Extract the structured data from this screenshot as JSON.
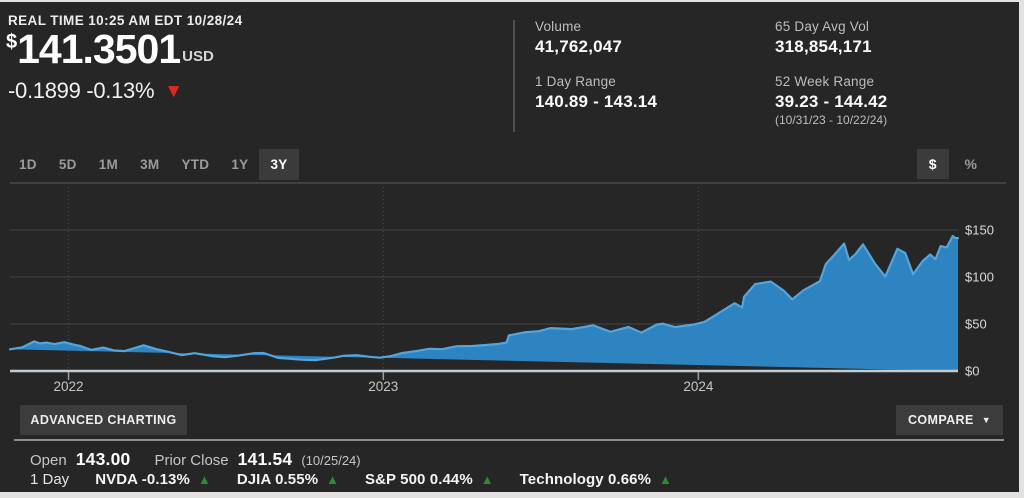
{
  "quote": {
    "realtime": "REAL TIME 10:25 AM EDT 10/28/24",
    "currency_symbol": "$",
    "price": "141.3501",
    "currency": "USD",
    "change": "-0.1899 -0.13%",
    "down_arrow": "▼"
  },
  "stats": {
    "volume_label": "Volume",
    "volume_value": "41,762,047",
    "day_range_label": "1 Day Range",
    "day_range_value": "140.89 - 143.14",
    "avg_vol_label": "65 Day Avg Vol",
    "avg_vol_value": "318,854,171",
    "week_range_label": "52 Week Range",
    "week_range_value": "39.23 - 144.42",
    "week_range_dates": "(10/31/23 - 10/22/24)"
  },
  "range_tabs": {
    "items": [
      {
        "label": "1D",
        "selected": false
      },
      {
        "label": "5D",
        "selected": false
      },
      {
        "label": "1M",
        "selected": false
      },
      {
        "label": "3M",
        "selected": false
      },
      {
        "label": "YTD",
        "selected": false
      },
      {
        "label": "1Y",
        "selected": false
      },
      {
        "label": "3Y",
        "selected": true
      }
    ],
    "unit_toggle": [
      {
        "label": "$",
        "selected": true
      },
      {
        "label": "%",
        "selected": false
      }
    ]
  },
  "chart_data": {
    "type": "area",
    "title": "NVDA 3 Year price chart",
    "x_unit": "months since 2021-10-25",
    "x_domain": [
      0,
      36.11
    ],
    "ylim": [
      0,
      200
    ],
    "grid": true,
    "y_ticks": [
      {
        "label": "$0",
        "value": 0
      },
      {
        "label": "$50",
        "value": 50
      },
      {
        "label": "$100",
        "value": 100
      },
      {
        "label": "$150",
        "value": 150
      }
    ],
    "x_ticks": [
      {
        "label": "2022",
        "t": 2.23
      },
      {
        "label": "2023",
        "t": 14.22
      },
      {
        "label": "2024",
        "t": 26.22
      }
    ],
    "fill_color": "#2e84c0",
    "line_color": "#55a4da",
    "series": [
      {
        "name": "NVDA",
        "points": [
          [
            0,
            23.1
          ],
          [
            0.45,
            25.0
          ],
          [
            0.92,
            31.5
          ],
          [
            1.15,
            29.3
          ],
          [
            1.38,
            30.2
          ],
          [
            1.7,
            28.6
          ],
          [
            2.07,
            30.6
          ],
          [
            2.4,
            28.3
          ],
          [
            2.66,
            26.8
          ],
          [
            3.09,
            22.4
          ],
          [
            3.55,
            24.9
          ],
          [
            3.97,
            21.8
          ],
          [
            4.37,
            21.2
          ],
          [
            4.75,
            24.5
          ],
          [
            5.09,
            27.3
          ],
          [
            5.55,
            23.5
          ],
          [
            6.04,
            20.3
          ],
          [
            6.54,
            16.9
          ],
          [
            7.03,
            18.9
          ],
          [
            7.69,
            15.9
          ],
          [
            8.18,
            14.8
          ],
          [
            8.64,
            16.2
          ],
          [
            9.3,
            18.9
          ],
          [
            9.66,
            19.2
          ],
          [
            10.22,
            13.9
          ],
          [
            10.61,
            13.2
          ],
          [
            11.1,
            12.0
          ],
          [
            11.63,
            11.6
          ],
          [
            12.32,
            14.2
          ],
          [
            12.68,
            16.1
          ],
          [
            13.21,
            16.8
          ],
          [
            13.7,
            15.1
          ],
          [
            14.09,
            14.2
          ],
          [
            14.49,
            15.7
          ],
          [
            14.95,
            19.2
          ],
          [
            15.44,
            21.1
          ],
          [
            15.97,
            23.6
          ],
          [
            16.46,
            23.2
          ],
          [
            17.02,
            26.4
          ],
          [
            17.61,
            26.6
          ],
          [
            18.07,
            27.6
          ],
          [
            18.63,
            28.9
          ],
          [
            18.92,
            30.4
          ],
          [
            19.0,
            37.9
          ],
          [
            19.58,
            41.1
          ],
          [
            20.14,
            42.3
          ],
          [
            20.6,
            45.6
          ],
          [
            21.39,
            44.6
          ],
          [
            21.95,
            47.2
          ],
          [
            22.21,
            48.6
          ],
          [
            22.87,
            41.7
          ],
          [
            23.56,
            46.8
          ],
          [
            24.05,
            40.8
          ],
          [
            24.64,
            49.5
          ],
          [
            24.87,
            50.3
          ],
          [
            25.33,
            46.7
          ],
          [
            26.05,
            49.5
          ],
          [
            26.45,
            52.2
          ],
          [
            26.97,
            61.2
          ],
          [
            27.6,
            72.1
          ],
          [
            27.89,
            67.5
          ],
          [
            27.96,
            78.8
          ],
          [
            28.38,
            92.5
          ],
          [
            28.98,
            95.1
          ],
          [
            29.47,
            85.5
          ],
          [
            29.8,
            76.2
          ],
          [
            30.22,
            85.9
          ],
          [
            30.85,
            95.5
          ],
          [
            31.08,
            113.9
          ],
          [
            31.4,
            123.5
          ],
          [
            31.77,
            135.5
          ],
          [
            31.96,
            118.2
          ],
          [
            32.2,
            124.3
          ],
          [
            32.49,
            134.8
          ],
          [
            32.95,
            114.2
          ],
          [
            33.34,
            100.4
          ],
          [
            33.8,
            130.0
          ],
          [
            34.1,
            125.5
          ],
          [
            34.4,
            102.9
          ],
          [
            34.76,
            116.9
          ],
          [
            35.05,
            123.9
          ],
          [
            35.25,
            118.9
          ],
          [
            35.45,
            132.9
          ],
          [
            35.68,
            131.5
          ],
          [
            35.91,
            143.6
          ],
          [
            36.01,
            141.5
          ],
          [
            36.11,
            141.4
          ]
        ]
      }
    ]
  },
  "footer": {
    "advanced_charting": "ADVANCED CHARTING",
    "compare": "COMPARE",
    "compare_arrow": "▼",
    "open_label": "Open",
    "open_value": "143.00",
    "prior_close_label": "Prior Close",
    "prior_close_value": "141.54",
    "prior_close_date": "(10/25/24)",
    "comparison": {
      "period": "1 Day",
      "up_arrow": "▲",
      "items": [
        {
          "text": "NVDA -0.13%"
        },
        {
          "text": "DJIA 0.55%"
        },
        {
          "text": "S&P 500 0.44%"
        },
        {
          "text": "Technology 0.66%"
        }
      ]
    }
  },
  "colors": {
    "panel_bg": "#262626",
    "accent_blue_fill": "#2e84c0",
    "accent_blue_line": "#55a4da",
    "negative_red": "#e0281e",
    "positive_green": "#2e8b2e",
    "selected_tab_bg": "#3b3b3b"
  }
}
